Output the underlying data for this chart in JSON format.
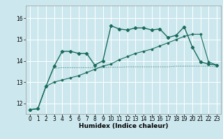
{
  "xlabel": "Humidex (Indice chaleur)",
  "bg_color": "#cce8ee",
  "grid_color": "#ffffff",
  "line_color": "#1a6b5a",
  "xlim": [
    -0.5,
    23.5
  ],
  "ylim": [
    11.5,
    16.6
  ],
  "yticks": [
    12,
    13,
    14,
    15,
    16
  ],
  "xtick_labels": [
    "0",
    "1",
    "2",
    "3",
    "4",
    "5",
    "6",
    "7",
    "8",
    "9",
    "10",
    "11",
    "12",
    "13",
    "14",
    "15",
    "16",
    "17",
    "18",
    "19",
    "20",
    "21",
    "22",
    "23"
  ],
  "series1_x": [
    0,
    1,
    2,
    3,
    4,
    5,
    6,
    7,
    8,
    9,
    10,
    11,
    12,
    13,
    14,
    15,
    16,
    17,
    18,
    19,
    20,
    21,
    22,
    23
  ],
  "series1_y": [
    11.7,
    11.75,
    12.8,
    13.75,
    14.45,
    14.45,
    14.35,
    14.35,
    13.8,
    14.0,
    15.65,
    15.5,
    15.45,
    15.55,
    15.55,
    15.45,
    15.5,
    15.1,
    15.2,
    15.6,
    14.65,
    13.95,
    13.85,
    13.8
  ],
  "series2_x": [
    0,
    1,
    2,
    3,
    4,
    5,
    6,
    7,
    8,
    9,
    10,
    11,
    12,
    13,
    14,
    15,
    16,
    17,
    18,
    19,
    20,
    21,
    22,
    23
  ],
  "series2_y": [
    11.7,
    11.75,
    12.8,
    13.0,
    13.1,
    13.2,
    13.3,
    13.45,
    13.6,
    13.75,
    13.85,
    14.05,
    14.2,
    14.35,
    14.45,
    14.55,
    14.7,
    14.85,
    15.0,
    15.15,
    15.25,
    15.25,
    13.95,
    13.8
  ],
  "series3_x": [
    0,
    1,
    2,
    3,
    4,
    5,
    6,
    7,
    8,
    9,
    10,
    11,
    12,
    13,
    14,
    15,
    16,
    17,
    18,
    19,
    20,
    21,
    22,
    23
  ],
  "series3_y": [
    11.7,
    11.75,
    12.8,
    13.65,
    13.68,
    13.68,
    13.68,
    13.68,
    13.68,
    13.68,
    13.7,
    13.7,
    13.72,
    13.72,
    13.72,
    13.72,
    13.72,
    13.72,
    13.75,
    13.75,
    13.75,
    13.75,
    13.75,
    13.72
  ]
}
